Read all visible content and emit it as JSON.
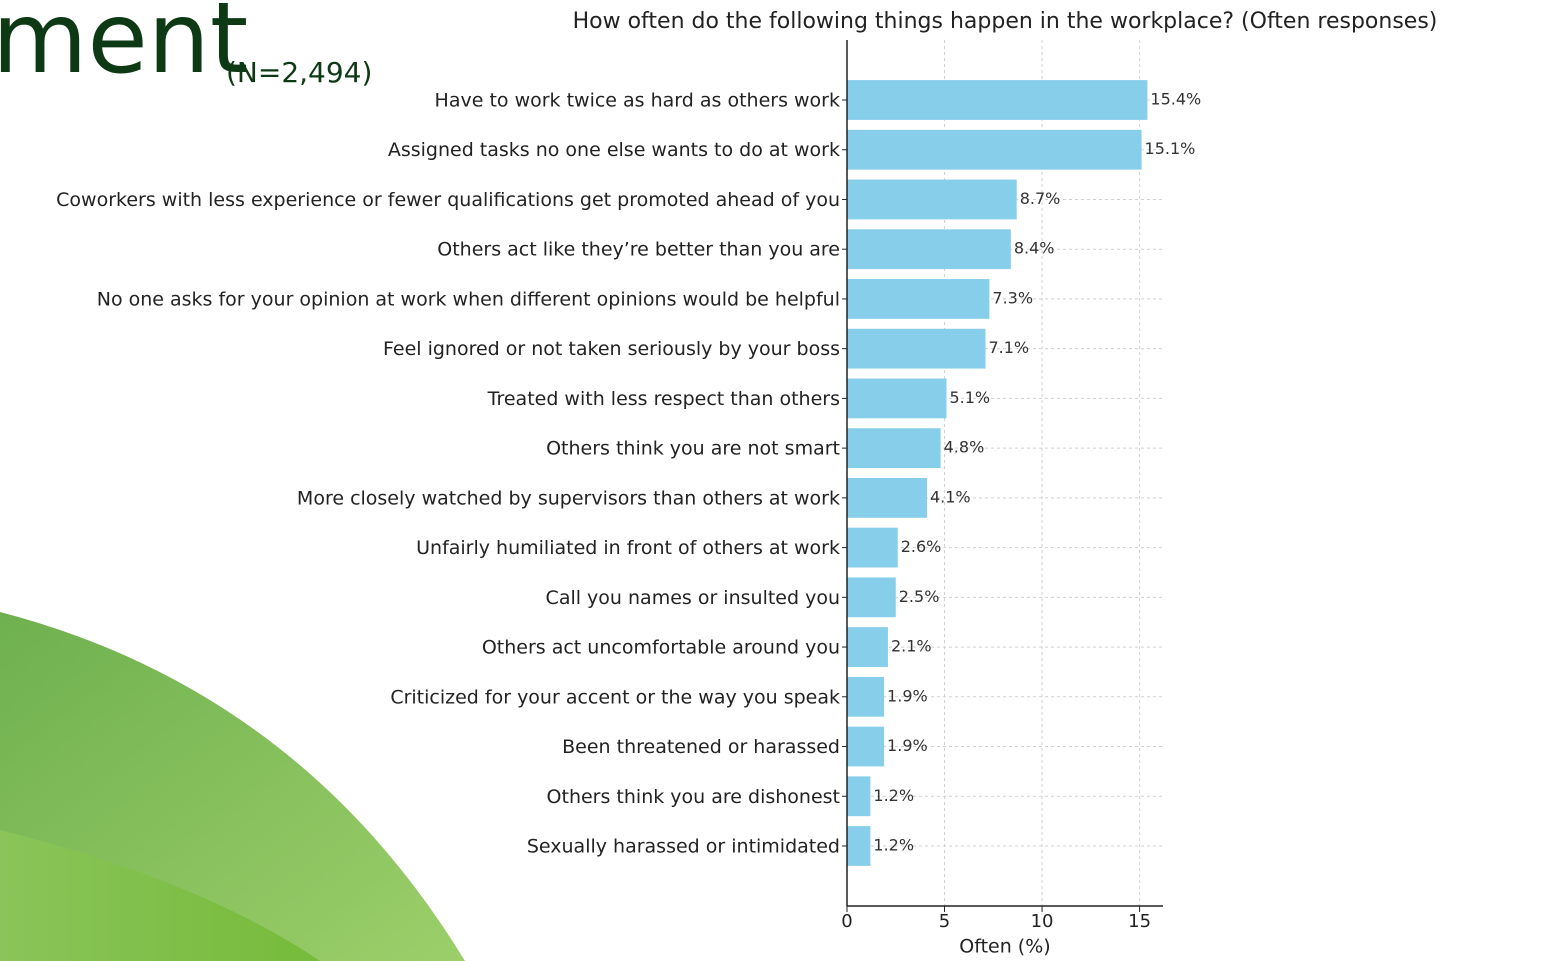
{
  "slide": {
    "title_fragment": "ment",
    "sample_note": "(N=2,494)"
  },
  "chart_data": {
    "type": "bar",
    "orientation": "horizontal",
    "title": "How often do the following things happen in the workplace? (Often responses)",
    "xlabel": "Often (%)",
    "categories": [
      "Have to work twice as hard as others work",
      "Assigned tasks no one else wants to do at work",
      "Coworkers with less experience or fewer qualifications get promoted ahead of you",
      "Others act like they’re better than you are",
      "No one asks for your opinion at work when different opinions would be helpful",
      "Feel ignored or not taken seriously by your boss",
      "Treated with less respect than others",
      "Others think you are not smart",
      "More closely watched by supervisors than others at work",
      "Unfairly humiliated in front of others at work",
      "Call you names or insulted you",
      "Others act uncomfortable around you",
      "Criticized for your accent or the way you speak",
      "Been threatened or harassed",
      "Others think you are dishonest",
      "Sexually harassed or intimidated"
    ],
    "values": [
      15.4,
      15.1,
      8.7,
      8.4,
      7.3,
      7.1,
      5.1,
      4.8,
      4.1,
      2.6,
      2.5,
      2.1,
      1.9,
      1.9,
      1.2,
      1.2
    ],
    "value_labels": [
      "15.4%",
      "15.1%",
      "8.7%",
      "8.4%",
      "7.3%",
      "7.1%",
      "5.1%",
      "4.8%",
      "4.1%",
      "2.6%",
      "2.5%",
      "2.1%",
      "1.9%",
      "1.9%",
      "1.2%",
      "1.2%"
    ],
    "color": "#87ceeb",
    "xlim": [
      0,
      16.2
    ],
    "xticks": [
      0,
      5,
      10,
      15
    ],
    "grid": true
  }
}
